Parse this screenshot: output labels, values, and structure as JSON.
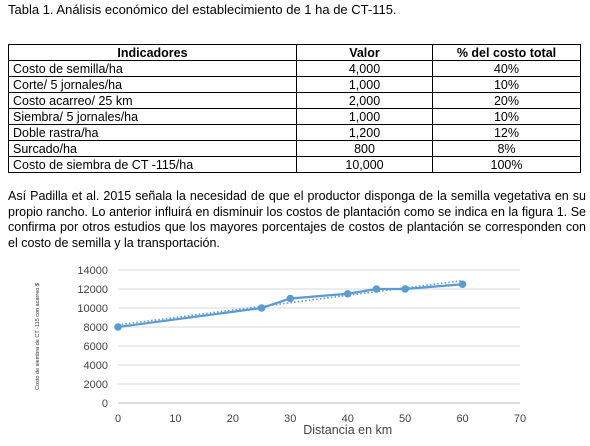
{
  "caption": "Tabla 1. Análisis económico del establecimiento de 1 ha de CT-115.",
  "table": {
    "headers": [
      "Indicadores",
      "Valor",
      "% del costo total"
    ],
    "rows": [
      [
        "Costo de semilla/ha",
        "4,000",
        "40%"
      ],
      [
        "Corte/ 5 jornales/ha",
        "1,000",
        "10%"
      ],
      [
        "Costo acarreo/ 25 km",
        "2,000",
        "20%"
      ],
      [
        "Siembra/ 5 jornales/ha",
        "1,000",
        "10%"
      ],
      [
        "Doble rastra/ha",
        "1,200",
        "12%"
      ],
      [
        "Surcado/ha",
        "800",
        "8%"
      ],
      [
        "Costo de siembra de CT -115/ha",
        "10,000",
        "100%"
      ]
    ]
  },
  "paragraph": "Así Padilla et al. 2015 señala la necesidad de que el productor disponga de la semilla vegetativa en su propio rancho. Lo anterior influirá en disminuir los costos de plantación como se indica en la figura 1. Se confirma por otros estudios que los mayores porcentajes de costos de plantación se corresponden con el costo de semilla y la transportación.",
  "chart_data": {
    "type": "line",
    "x": [
      0,
      25,
      30,
      40,
      45,
      50,
      60
    ],
    "series": [
      {
        "values": [
          8000,
          10000,
          11000,
          11500,
          12000,
          12000,
          12500
        ],
        "color": "#5b9bd5",
        "marker": "circle"
      }
    ],
    "trendline": {
      "style": "dotted",
      "color": "#5b9bd5",
      "kind": "linear"
    },
    "xlabel": "Distancia en km",
    "ylabel": "Costo de siembra de CT -115 con acarreo $",
    "xlim": [
      0,
      70
    ],
    "ylim": [
      0,
      14000
    ],
    "xticks": [
      0,
      10,
      20,
      30,
      40,
      50,
      60,
      70
    ],
    "yticks": [
      0,
      2000,
      4000,
      6000,
      8000,
      10000,
      12000,
      14000
    ],
    "grid": "horizontal",
    "gridColor": "#d9d9d9"
  }
}
